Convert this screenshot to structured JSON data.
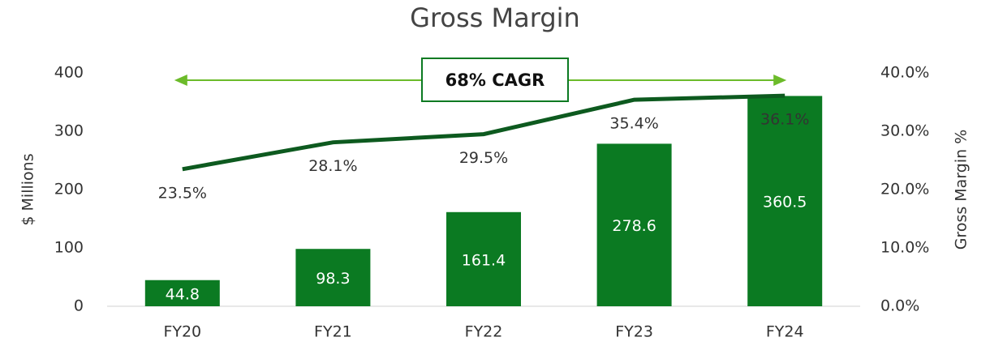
{
  "chart_data": {
    "type": "bar",
    "title": "Gross Margin",
    "ylabel": "$ Millions",
    "y2label": "Gross Margin %",
    "annotation": "68% CAGR",
    "categories": [
      "FY20",
      "FY21",
      "FY22",
      "FY23",
      "FY24"
    ],
    "series": [
      {
        "type": "bar",
        "color": "#0b7a22",
        "values": [
          44.8,
          98.3,
          161.4,
          278.6,
          360.5
        ]
      },
      {
        "type": "line",
        "axis": "y2",
        "color": "#0d5a1f",
        "values": [
          23.5,
          28.1,
          29.5,
          35.4,
          36.1
        ],
        "value_labels": [
          "23.5%",
          "28.1%",
          "29.5%",
          "35.4%",
          "36.1%"
        ]
      }
    ],
    "ylim": [
      0,
      400
    ],
    "yticks": [
      0,
      100,
      200,
      300,
      400
    ],
    "y2lim": [
      0,
      40
    ],
    "y2ticks": [
      {
        "value": 0,
        "label": "0.0%"
      },
      {
        "value": 10,
        "label": "10.0%"
      },
      {
        "value": 20,
        "label": "20.0%"
      },
      {
        "value": 30,
        "label": "30.0%"
      },
      {
        "value": 40,
        "label": "40.0%"
      }
    ],
    "grid": false
  }
}
